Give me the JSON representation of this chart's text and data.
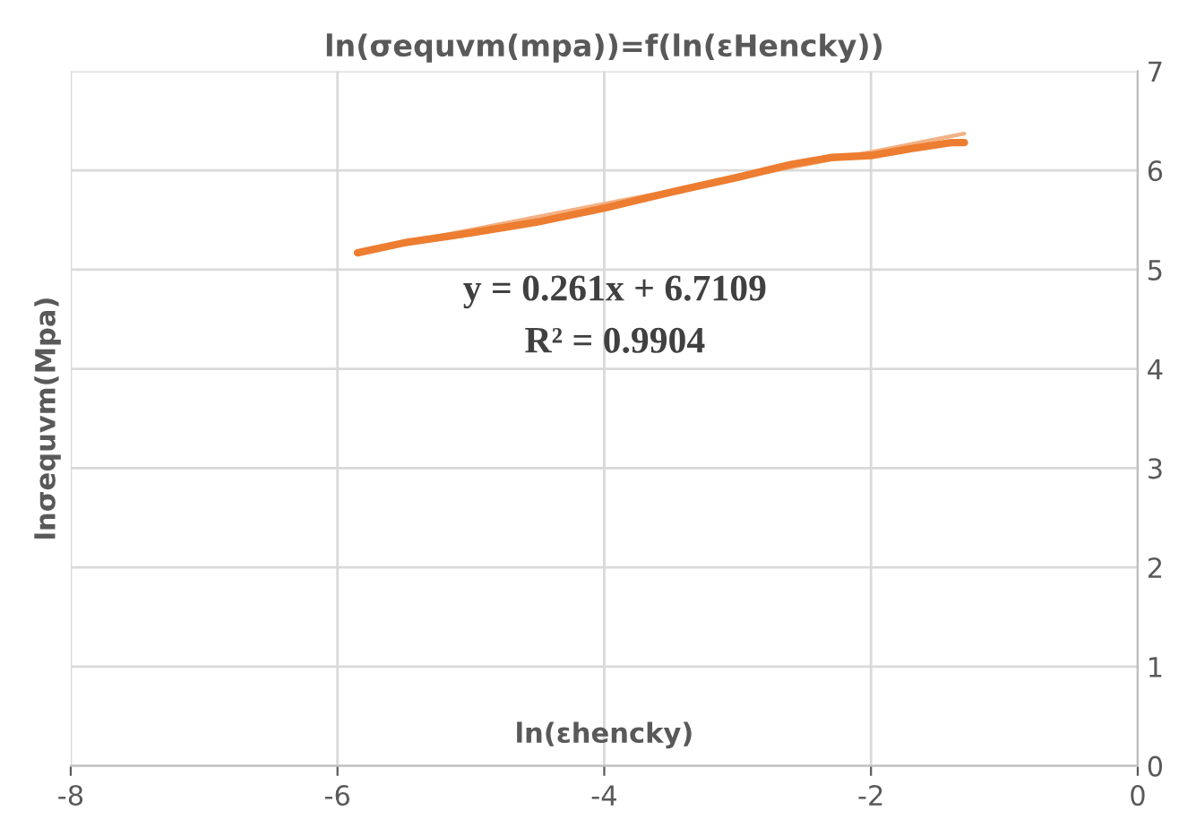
{
  "chart_data": {
    "type": "line",
    "title": "ln(σequvm(mpa))=f(ln(εHencky))",
    "xlabel": "ln(εhencky)",
    "ylabel": "lnσequvm(Mpa)",
    "series": [
      {
        "color": "#ed7d31",
        "x": [
          -5.85,
          -5.5,
          -5.0,
          -4.5,
          -4.0,
          -3.5,
          -3.0,
          -2.6,
          -2.3,
          -2.0,
          -1.7,
          -1.4,
          -1.3
        ],
        "values": [
          5.17,
          5.27,
          5.37,
          5.48,
          5.62,
          5.78,
          5.93,
          6.06,
          6.13,
          6.15,
          6.22,
          6.28,
          6.28
        ]
      },
      {
        "type": "line",
        "color": "#f4b183",
        "x": [
          -5.85,
          -1.3
        ],
        "values": [
          5.18,
          6.37
        ]
      }
    ],
    "annotations": [
      "y = 0.261x + 6.7109",
      "R² = 0.9904"
    ],
    "xlim": [
      -8,
      0
    ],
    "xticks": [
      -8,
      -6,
      -4,
      -2,
      0
    ],
    "ylim": [
      0,
      7
    ],
    "yticks": [
      0,
      1,
      2,
      3,
      4,
      5,
      6,
      7
    ],
    "grid": true,
    "legend": false,
    "marker": "none",
    "line_style": "solid"
  }
}
